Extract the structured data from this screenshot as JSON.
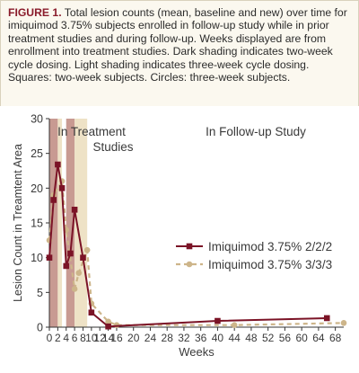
{
  "caption": {
    "label": "FIGURE 1.",
    "text": "Total lesion counts (mean, baseline and new) over time for imiquimod 3.75% subjects enrolled in follow-up study while in prior treatment studies and during follow-up. Weeks displayed are from enrollment into treatment studies. Dark shading indicates two-week cycle dosing. Light shading indicates three-week cycle dosing. Squares: two-week subjects. Circles: three-week subjects."
  },
  "chart_data": {
    "type": "line",
    "xlabel": "Weeks",
    "ylabel": "Lesion Count in Treamtent Area",
    "xlim": [
      0,
      70
    ],
    "ylim": [
      0,
      30
    ],
    "xticks": [
      0,
      2,
      4,
      6,
      8,
      10,
      12,
      14,
      16,
      20,
      24,
      28,
      32,
      36,
      40,
      44,
      48,
      52,
      56,
      60,
      64,
      68
    ],
    "yticks": [
      0,
      5,
      10,
      15,
      20,
      25,
      30
    ],
    "grid": false,
    "legend_position": "right",
    "annotations": [
      "In Treatment",
      "Studies",
      "In Follow-up Study"
    ],
    "shading": [
      {
        "x0": 0,
        "x1": 2,
        "kind": "dark"
      },
      {
        "x0": 2,
        "x1": 3,
        "kind": "light"
      },
      {
        "x0": 4,
        "x1": 6,
        "kind": "dark"
      },
      {
        "x0": 6,
        "x1": 9,
        "kind": "light"
      }
    ],
    "series": [
      {
        "name": "Imiquimod 3.75% 2/2/2",
        "marker": "square",
        "style": "solid",
        "color": "#7b1326",
        "x": [
          0,
          1,
          2,
          3,
          4,
          5,
          6,
          8,
          10,
          14,
          40,
          66
        ],
        "y": [
          10,
          18.3,
          23.4,
          20,
          8.8,
          10.6,
          16.9,
          10,
          2.1,
          0.1,
          0.9,
          1.3
        ]
      },
      {
        "name": "Imiquimod 3.75% 3/3/3",
        "marker": "circle",
        "style": "dashed",
        "color": "#cdb58a",
        "x": [
          0,
          1,
          3,
          4,
          6,
          7,
          9,
          10,
          14,
          16,
          44,
          70
        ],
        "y": [
          12.5,
          19,
          21,
          14,
          5.5,
          7.8,
          11.1,
          3.4,
          0.8,
          0.3,
          0.3,
          0.6
        ]
      }
    ]
  },
  "colors": {
    "dark_shade": "#c89a92",
    "light_shade": "#eee2c6",
    "axis": "#333333"
  }
}
